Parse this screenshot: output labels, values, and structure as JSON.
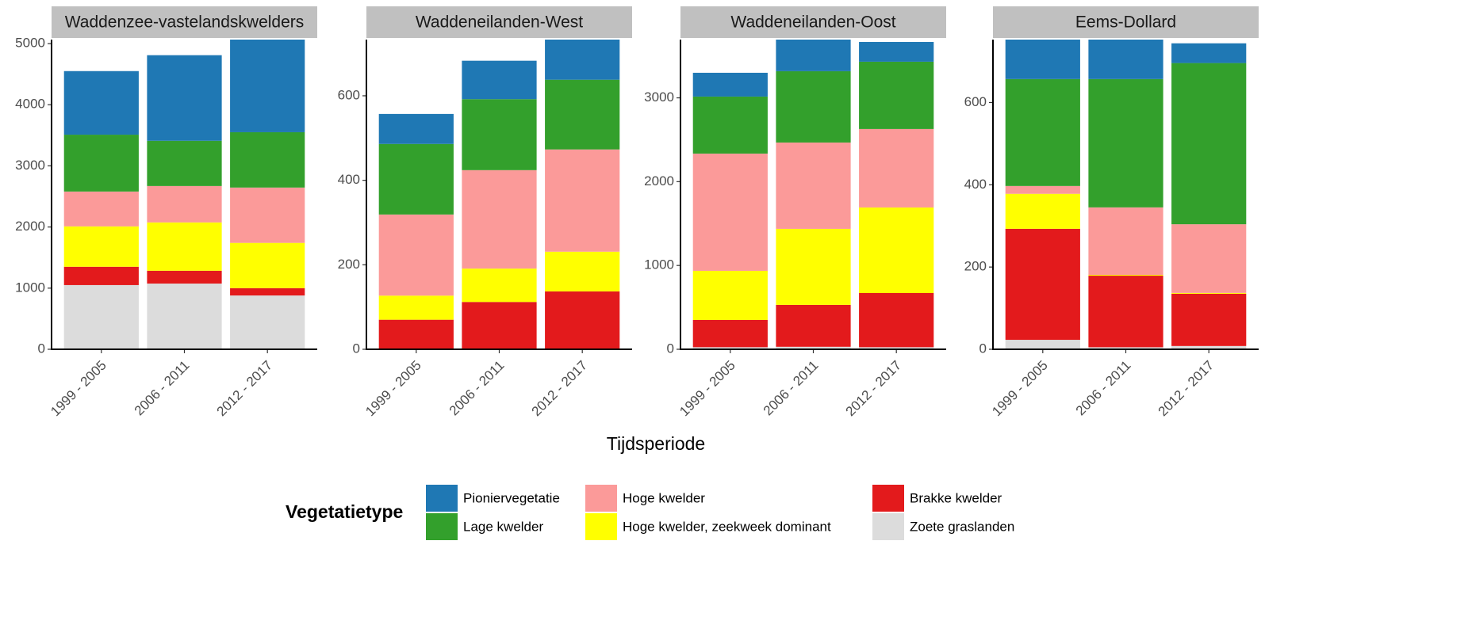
{
  "chart_data": [
    {
      "type": "bar",
      "stacked": true,
      "title": "Waddenzee-vastelandskwelders",
      "categories": [
        "1999 - 2005",
        "2006 - 2011",
        "2012 - 2017"
      ],
      "series": [
        {
          "name": "Pioniervegetatie",
          "color": "#1f78b4",
          "values": [
            1040,
            1400,
            1520
          ]
        },
        {
          "name": "Lage kwelder",
          "color": "#33a02c",
          "values": [
            930,
            740,
            905
          ]
        },
        {
          "name": "Hoge kwelder",
          "color": "#fb9a99",
          "values": [
            570,
            595,
            905
          ]
        },
        {
          "name": "Hoge kwelder, zeekweek dominant",
          "color": "#ffff00",
          "values": [
            660,
            790,
            740
          ]
        },
        {
          "name": "Brakke kwelder",
          "color": "#e31a1c",
          "values": [
            300,
            210,
            120
          ]
        },
        {
          "name": "Zoete graslanden",
          "color": "#dcdcdc",
          "values": [
            1050,
            1075,
            880
          ]
        }
      ],
      "ylim": [
        0,
        5065
      ],
      "yticks": [
        0,
        1000,
        2000,
        3000,
        4000,
        5000
      ]
    },
    {
      "type": "bar",
      "stacked": true,
      "title": "Waddeneilanden-West",
      "categories": [
        "1999 - 2005",
        "2006 - 2011",
        "2012 - 2017"
      ],
      "series": [
        {
          "name": "Pioniervegetatie",
          "color": "#1f78b4",
          "values": [
            71,
            91,
            100
          ]
        },
        {
          "name": "Lage kwelder",
          "color": "#33a02c",
          "values": [
            167,
            168,
            165
          ]
        },
        {
          "name": "Hoge kwelder",
          "color": "#fb9a99",
          "values": [
            192,
            233,
            242
          ]
        },
        {
          "name": "Hoge kwelder, zeekweek dominant",
          "color": "#ffff00",
          "values": [
            57,
            79,
            94
          ]
        },
        {
          "name": "Brakke kwelder",
          "color": "#e31a1c",
          "values": [
            70,
            112,
            137
          ]
        },
        {
          "name": "Zoete graslanden",
          "color": "#dcdcdc",
          "values": [
            0,
            0,
            0
          ]
        }
      ],
      "ylim": [
        0,
        733
      ],
      "yticks": [
        0,
        200,
        400,
        600
      ]
    },
    {
      "type": "bar",
      "stacked": true,
      "title": "Waddeneilanden-Oost",
      "categories": [
        "1999 - 2005",
        "2006 - 2011",
        "2012 - 2017"
      ],
      "series": [
        {
          "name": "Pioniervegetatie",
          "color": "#1f78b4",
          "values": [
            284,
            400,
            236
          ]
        },
        {
          "name": "Lage kwelder",
          "color": "#33a02c",
          "values": [
            680,
            851,
            803
          ]
        },
        {
          "name": "Hoge kwelder",
          "color": "#fb9a99",
          "values": [
            1399,
            1030,
            936
          ]
        },
        {
          "name": "Hoge kwelder, zeekweek dominant",
          "color": "#ffff00",
          "values": [
            586,
            907,
            1021
          ]
        },
        {
          "name": "Brakke kwelder",
          "color": "#e31a1c",
          "values": [
            325,
            500,
            646
          ]
        },
        {
          "name": "Zoete graslanden",
          "color": "#dcdcdc",
          "values": [
            25,
            30,
            25
          ]
        }
      ],
      "ylim": [
        0,
        3695
      ],
      "yticks": [
        0,
        1000,
        2000,
        3000
      ]
    },
    {
      "type": "bar",
      "stacked": true,
      "title": "Eems-Dollard",
      "categories": [
        "1999 - 2005",
        "2006 - 2011",
        "2012 - 2017"
      ],
      "series": [
        {
          "name": "Pioniervegetatie",
          "color": "#1f78b4",
          "values": [
            100,
            100,
            48
          ]
        },
        {
          "name": "Lage kwelder",
          "color": "#33a02c",
          "values": [
            260,
            312,
            392
          ]
        },
        {
          "name": "Hoge kwelder",
          "color": "#fb9a99",
          "values": [
            19,
            164,
            167
          ]
        },
        {
          "name": "Hoge kwelder, zeekweek dominant",
          "color": "#ffff00",
          "values": [
            85,
            2,
            2
          ]
        },
        {
          "name": "Brakke kwelder",
          "color": "#e31a1c",
          "values": [
            270,
            174,
            127
          ]
        },
        {
          "name": "Zoete graslanden",
          "color": "#dcdcdc",
          "values": [
            23,
            5,
            8
          ]
        }
      ],
      "ylim": [
        0,
        753
      ],
      "yticks": [
        0,
        200,
        400,
        600
      ]
    }
  ],
  "xlabel": "Tijdsperiode",
  "legend_title": "Vegetatietype"
}
